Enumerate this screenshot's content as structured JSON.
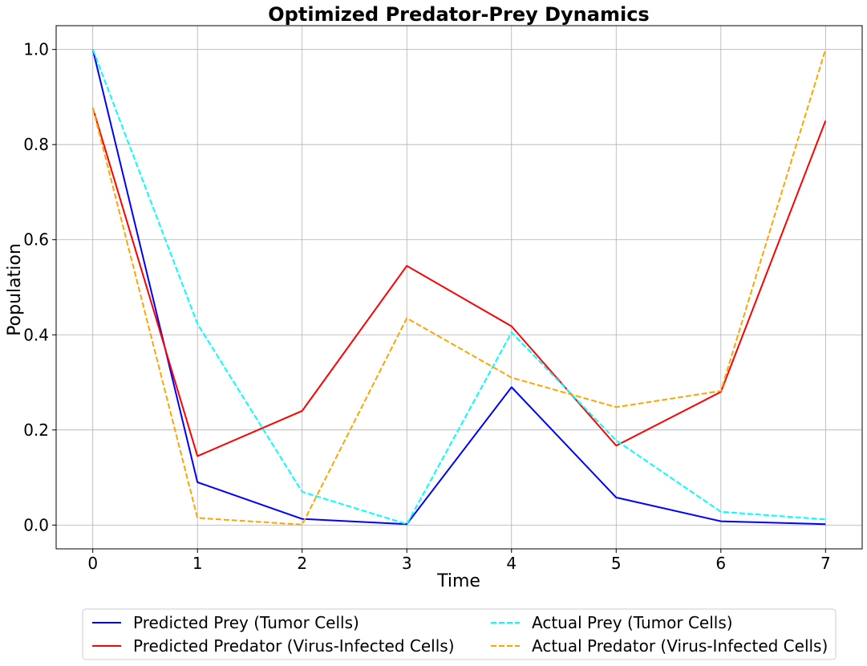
{
  "chart_data": {
    "type": "line",
    "title": "Optimized Predator-Prey Dynamics",
    "xlabel": "Time",
    "ylabel": "Population",
    "x": [
      0,
      1,
      2,
      3,
      4,
      5,
      6,
      7
    ],
    "xlim": [
      -0.35,
      7.35
    ],
    "ylim": [
      -0.05,
      1.05
    ],
    "xticks": [
      "0",
      "1",
      "2",
      "3",
      "4",
      "5",
      "6",
      "7"
    ],
    "yticks": [
      "0.0",
      "0.2",
      "0.4",
      "0.6",
      "0.8",
      "1.0"
    ],
    "grid": true,
    "legend_position": "below plot",
    "series": [
      {
        "name": "Predicted Prey (Tumor Cells)",
        "color": "#0000ff",
        "style": "solid",
        "values": [
          1.0,
          0.09,
          0.013,
          0.002,
          0.29,
          0.058,
          0.008,
          0.002
        ]
      },
      {
        "name": "Predicted Predator (Virus-Infected Cells)",
        "color": "#ff0000",
        "style": "solid",
        "values": [
          0.877,
          0.145,
          0.24,
          0.545,
          0.418,
          0.167,
          0.28,
          0.85
        ]
      },
      {
        "name": "Actual Prey (Tumor Cells)",
        "color": "#00ffff",
        "style": "dashed",
        "values": [
          1.0,
          0.423,
          0.07,
          0.002,
          0.405,
          0.178,
          0.028,
          0.012
        ]
      },
      {
        "name": "Actual Predator (Virus-Infected Cells)",
        "color": "#ffa500",
        "style": "dashed",
        "values": [
          0.877,
          0.015,
          0.001,
          0.435,
          0.31,
          0.248,
          0.282,
          1.0
        ]
      }
    ]
  }
}
